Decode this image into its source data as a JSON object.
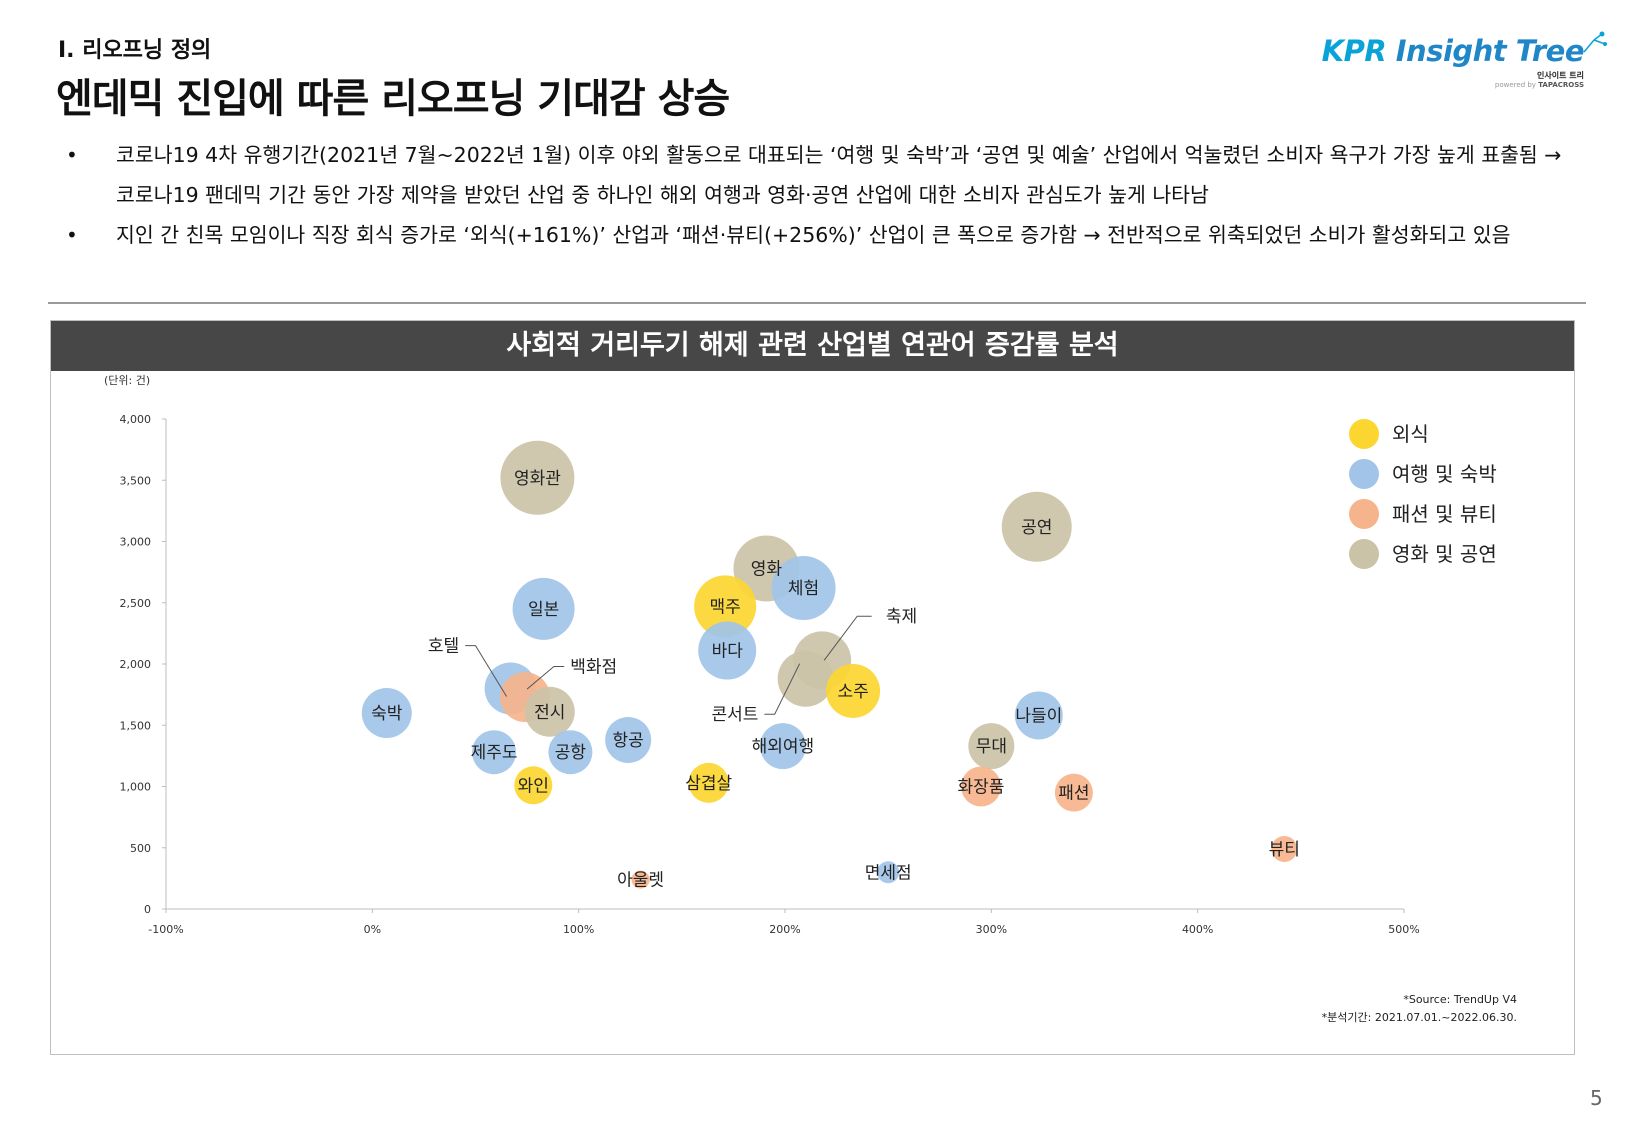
{
  "header": {
    "section": "Ⅰ. 리오프닝 정의",
    "title": "엔데믹 진입에 따른 리오프닝 기대감 상승"
  },
  "logo": {
    "brand_kpr": "KPR",
    "brand_rest": " Insight Tree",
    "sub": "인사이트 트리",
    "powered_prefix": "powered by ",
    "powered_name": "TAPACROSS"
  },
  "bullets": [
    {
      "symbol": "•",
      "text": "코로나19 4차 유행기간(2021년 7월~2022년 1월) 이후 야외 활동으로 대표되는 ‘여행 및 숙박’과 ‘공연 및 예술’ 산업에서 억눌렸던 소비자 욕구가 가장 높게 표출됨 → 코로나19 팬데믹 기간 동안 가장 제약을 받았던 산업 중 하나인 해외 여행과 영화·공연 산업에 대한 소비자 관심도가 높게 나타남"
    },
    {
      "symbol": "•",
      "text": "지인 간 친목 모임이나 직장 회식 증가로 ‘외식(+161%)’ 산업과 ‘패션·뷰티(+256%)’ 산업이 큰 폭으로 증가함 → 전반적으로 위축되었던 소비가 활성화되고 있음"
    }
  ],
  "chart_title": "사회적 거리두기 해제 관련 산업별 연관어 증감률 분석",
  "page_number": "5",
  "chart_data": {
    "type": "bubble",
    "unit_label": "(단위: 건)",
    "xlim": [
      -100,
      500
    ],
    "ylim": [
      0,
      4000
    ],
    "x_ticks": [
      -100,
      0,
      100,
      200,
      300,
      400,
      500
    ],
    "x_tick_labels": [
      "-100%",
      "0%",
      "100%",
      "200%",
      "300%",
      "400%",
      "500%"
    ],
    "y_ticks": [
      0,
      500,
      1000,
      1500,
      2000,
      2500,
      3000,
      3500,
      4000
    ],
    "y_tick_labels": [
      "0",
      "500",
      "1,000",
      "1,500",
      "2,000",
      "2,500",
      "3,000",
      "3,500",
      "4,000"
    ],
    "legend_position": "top-right",
    "categories": [
      {
        "key": "dining",
        "name": "외식",
        "color": "#fcd630"
      },
      {
        "key": "travel",
        "name": "여행 및 숙박",
        "color": "#a1c4e8"
      },
      {
        "key": "fashion",
        "name": "패션 및 뷰티",
        "color": "#f6b48c"
      },
      {
        "key": "culture",
        "name": "영화 및 공연",
        "color": "#cbc3a8"
      }
    ],
    "points": [
      {
        "label": "영화관",
        "x": 80,
        "y": 3520,
        "size": 37,
        "cat": "culture"
      },
      {
        "label": "공연",
        "x": 322,
        "y": 3120,
        "size": 35,
        "cat": "culture"
      },
      {
        "label": "영화",
        "x": 191,
        "y": 2780,
        "size": 33,
        "cat": "culture"
      },
      {
        "label": "체험",
        "x": 209,
        "y": 2620,
        "size": 32,
        "cat": "travel"
      },
      {
        "label": "일본",
        "x": 83,
        "y": 2450,
        "size": 31,
        "cat": "travel"
      },
      {
        "label": "맥주",
        "x": 171,
        "y": 2470,
        "size": 31,
        "cat": "dining"
      },
      {
        "label": "바다",
        "x": 172,
        "y": 2110,
        "size": 29,
        "cat": "travel"
      },
      {
        "label": "축제",
        "x": 218,
        "y": 2030,
        "size": 29,
        "cat": "culture"
      },
      {
        "label": "콘서트",
        "x": 210,
        "y": 1880,
        "size": 28,
        "cat": "culture"
      },
      {
        "label": "소주",
        "x": 233,
        "y": 1780,
        "size": 27,
        "cat": "dining"
      },
      {
        "label": "호텔",
        "x": 67,
        "y": 1800,
        "size": 26,
        "cat": "travel"
      },
      {
        "label": "백화점",
        "x": 74,
        "y": 1730,
        "size": 25,
        "cat": "fashion"
      },
      {
        "label": "전시",
        "x": 86,
        "y": 1610,
        "size": 25,
        "cat": "culture"
      },
      {
        "label": "숙박",
        "x": 7,
        "y": 1600,
        "size": 25,
        "cat": "travel"
      },
      {
        "label": "나들이",
        "x": 323,
        "y": 1580,
        "size": 24,
        "cat": "travel"
      },
      {
        "label": "항공",
        "x": 124,
        "y": 1380,
        "size": 23,
        "cat": "travel"
      },
      {
        "label": "해외여행",
        "x": 199,
        "y": 1330,
        "size": 23,
        "cat": "travel"
      },
      {
        "label": "무대",
        "x": 300,
        "y": 1330,
        "size": 23,
        "cat": "culture"
      },
      {
        "label": "제주도",
        "x": 59,
        "y": 1280,
        "size": 22,
        "cat": "travel"
      },
      {
        "label": "공항",
        "x": 96,
        "y": 1280,
        "size": 22,
        "cat": "travel"
      },
      {
        "label": "와인",
        "x": 78,
        "y": 1010,
        "size": 19,
        "cat": "dining"
      },
      {
        "label": "삼겹살",
        "x": 163,
        "y": 1030,
        "size": 20,
        "cat": "dining"
      },
      {
        "label": "화장품",
        "x": 295,
        "y": 1000,
        "size": 20,
        "cat": "fashion"
      },
      {
        "label": "패션",
        "x": 340,
        "y": 950,
        "size": 19,
        "cat": "fashion"
      },
      {
        "label": "뷰티",
        "x": 442,
        "y": 490,
        "size": 13,
        "cat": "fashion"
      },
      {
        "label": "아울렛",
        "x": 130,
        "y": 240,
        "size": 9,
        "cat": "fashion"
      },
      {
        "label": "면세점",
        "x": 250,
        "y": 300,
        "size": 11,
        "cat": "travel"
      }
    ],
    "source_lines": [
      "*Source: TrendUp V4",
      "*분석기간: 2021.07.01.~2022.06.30."
    ]
  }
}
